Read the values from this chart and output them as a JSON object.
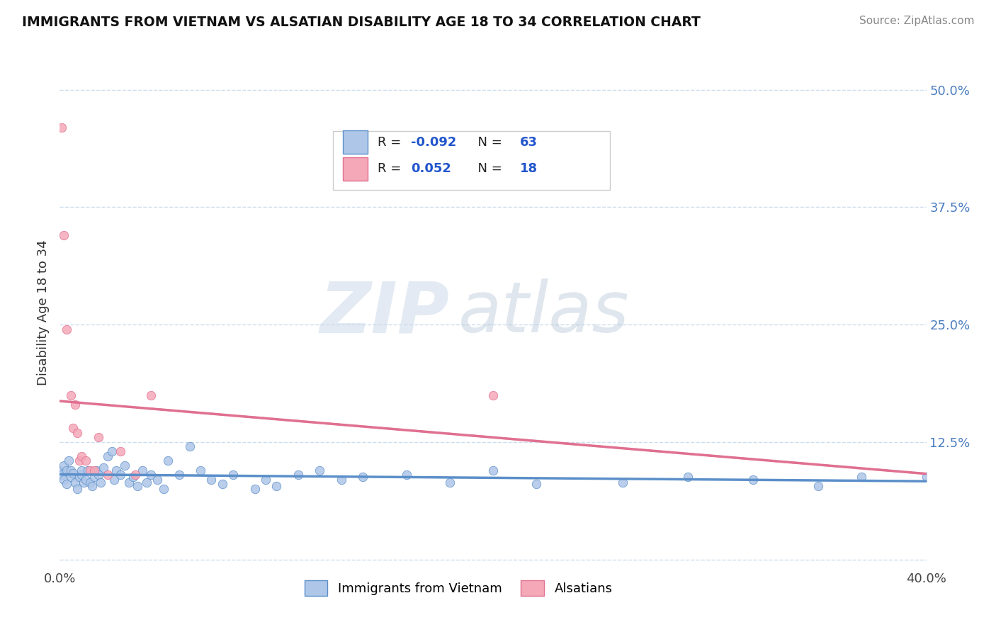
{
  "title": "IMMIGRANTS FROM VIETNAM VS ALSATIAN DISABILITY AGE 18 TO 34 CORRELATION CHART",
  "source": "Source: ZipAtlas.com",
  "ylabel": "Disability Age 18 to 34",
  "xlim": [
    0.0,
    0.4
  ],
  "ylim": [
    -0.01,
    0.535
  ],
  "yticks": [
    0.0,
    0.125,
    0.25,
    0.375,
    0.5
  ],
  "ytick_labels": [
    "",
    "12.5%",
    "25.0%",
    "37.5%",
    "50.0%"
  ],
  "xticks": [
    0.0,
    0.4
  ],
  "xtick_labels": [
    "0.0%",
    "40.0%"
  ],
  "background_color": "#ffffff",
  "grid_color": "#ccddee",
  "vietnam_R": "-0.092",
  "vietnam_N": "63",
  "alsatian_R": "0.052",
  "alsatian_N": "18",
  "vietnam_color": "#aec6e8",
  "alsatian_color": "#f4a8b8",
  "vietnam_line_color": "#5b8fc9",
  "alsatian_line_color": "#e07090",
  "vietnam_scatter_x": [
    0.0,
    0.001,
    0.002,
    0.002,
    0.003,
    0.003,
    0.004,
    0.005,
    0.005,
    0.006,
    0.007,
    0.008,
    0.009,
    0.01,
    0.01,
    0.011,
    0.012,
    0.013,
    0.014,
    0.015,
    0.016,
    0.017,
    0.018,
    0.019,
    0.02,
    0.022,
    0.024,
    0.025,
    0.026,
    0.028,
    0.03,
    0.032,
    0.034,
    0.036,
    0.038,
    0.04,
    0.042,
    0.045,
    0.048,
    0.05,
    0.055,
    0.06,
    0.065,
    0.07,
    0.075,
    0.08,
    0.09,
    0.095,
    0.1,
    0.11,
    0.12,
    0.13,
    0.14,
    0.16,
    0.18,
    0.2,
    0.22,
    0.26,
    0.29,
    0.32,
    0.35,
    0.37,
    0.4
  ],
  "vietnam_scatter_y": [
    0.095,
    0.09,
    0.085,
    0.1,
    0.08,
    0.095,
    0.105,
    0.088,
    0.095,
    0.092,
    0.082,
    0.075,
    0.088,
    0.09,
    0.095,
    0.082,
    0.085,
    0.095,
    0.082,
    0.078,
    0.088,
    0.095,
    0.09,
    0.082,
    0.098,
    0.11,
    0.115,
    0.085,
    0.095,
    0.09,
    0.1,
    0.082,
    0.088,
    0.078,
    0.095,
    0.082,
    0.09,
    0.085,
    0.075,
    0.105,
    0.09,
    0.12,
    0.095,
    0.085,
    0.08,
    0.09,
    0.075,
    0.085,
    0.078,
    0.09,
    0.095,
    0.085,
    0.088,
    0.09,
    0.082,
    0.095,
    0.08,
    0.082,
    0.088,
    0.085,
    0.078,
    0.088,
    0.088
  ],
  "alsatian_scatter_x": [
    0.001,
    0.002,
    0.003,
    0.005,
    0.006,
    0.007,
    0.008,
    0.009,
    0.01,
    0.012,
    0.014,
    0.016,
    0.018,
    0.022,
    0.028,
    0.035,
    0.042,
    0.2
  ],
  "alsatian_scatter_y": [
    0.46,
    0.345,
    0.245,
    0.175,
    0.14,
    0.165,
    0.135,
    0.105,
    0.11,
    0.105,
    0.095,
    0.095,
    0.13,
    0.09,
    0.115,
    0.09,
    0.175,
    0.175
  ],
  "watermark_zip": "ZIP",
  "watermark_atlas": "atlas",
  "legend_labels": [
    "Immigrants from Vietnam",
    "Alsatians"
  ]
}
